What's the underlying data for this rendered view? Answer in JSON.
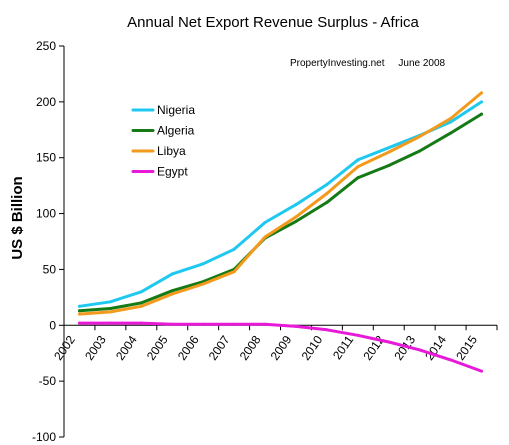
{
  "chart_data": {
    "type": "line",
    "title": "Annual Net Export Revenue Surplus - Africa",
    "annotation": "PropertyInvesting.net     June 2008",
    "ylabel": "US $ Billion",
    "xlabel": "",
    "ylim": [
      -100,
      250
    ],
    "yticks": [
      -100,
      -50,
      0,
      50,
      100,
      150,
      200,
      250
    ],
    "categories": [
      "2002",
      "2003",
      "2004",
      "2005",
      "2006",
      "2007",
      "2008",
      "2009",
      "2010",
      "2011",
      "2012",
      "2013",
      "2014",
      "2015"
    ],
    "series": [
      {
        "name": "Nigeria",
        "color": "#1ec8f0",
        "values": [
          17,
          21,
          30,
          46,
          55,
          68,
          92,
          108,
          126,
          148,
          159,
          170,
          182,
          200
        ]
      },
      {
        "name": "Algeria",
        "color": "#157a15",
        "values": [
          13,
          15,
          20,
          31,
          39,
          50,
          78,
          93,
          110,
          132,
          143,
          156,
          172,
          189
        ]
      },
      {
        "name": "Libya",
        "color": "#f39a1c",
        "values": [
          10,
          12,
          17,
          28,
          37,
          48,
          79,
          97,
          118,
          142,
          155,
          169,
          185,
          208
        ]
      },
      {
        "name": "Egypt",
        "color": "#e81ad8",
        "values": [
          2,
          2,
          2,
          1,
          1,
          1,
          1,
          -1,
          -4,
          -9,
          -15,
          -22,
          -31,
          -41
        ]
      }
    ],
    "grid": false,
    "legend_position": "upper-left inside plot"
  }
}
